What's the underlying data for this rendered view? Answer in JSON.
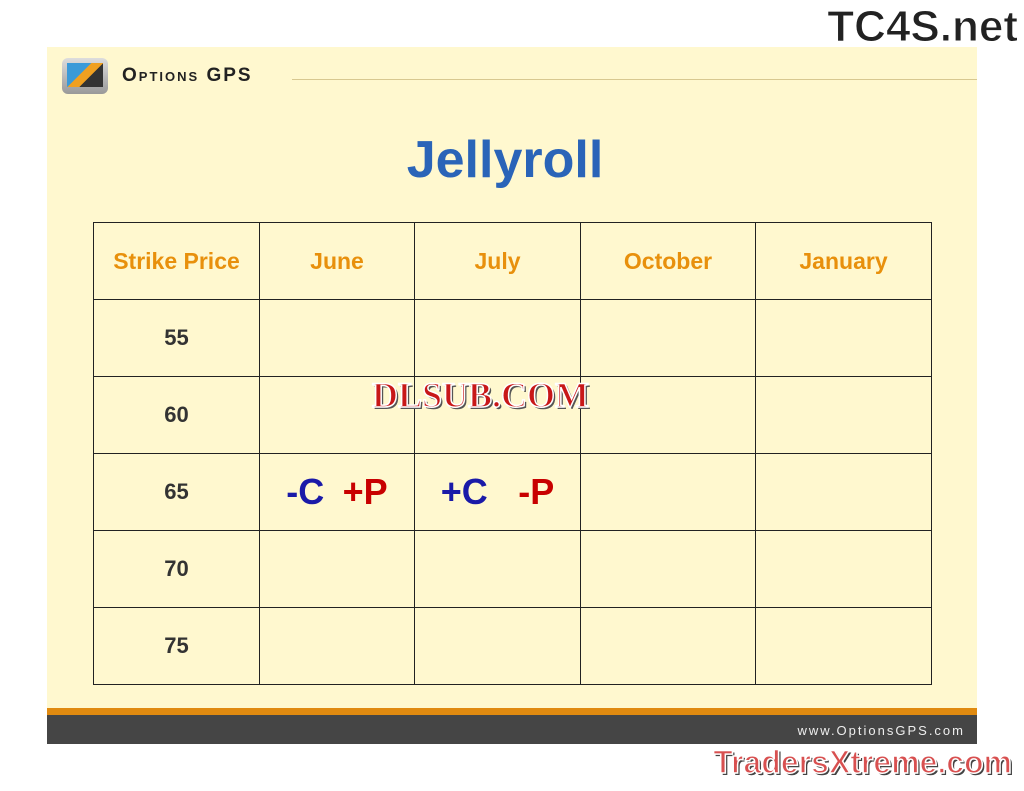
{
  "header": {
    "brand": "Options GPS"
  },
  "title": "Jellyroll",
  "table": {
    "headers": [
      "Strike Price",
      "June",
      "July",
      "October",
      "January"
    ],
    "strikes": [
      "55",
      "60",
      "65",
      "70",
      "75"
    ],
    "row65": {
      "june_call": "-C",
      "june_put": "+P",
      "july_call": "+C",
      "july_put": "-P"
    }
  },
  "footer": {
    "url": "www.OptionsGPS.com"
  },
  "watermarks": {
    "top": "TC4S.net",
    "middle": "DLSUB.COM",
    "bottom": "TradersXtreme.com"
  },
  "colors": {
    "title": "#2a64b8",
    "header": "#e8900c",
    "call": "#1a1aa8",
    "put": "#c80000"
  }
}
